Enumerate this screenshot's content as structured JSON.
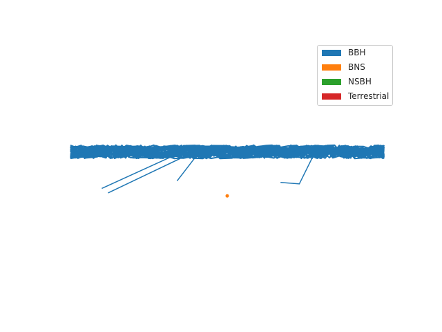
{
  "chart_data": {
    "type": "line",
    "title": "",
    "xlabel": "",
    "ylabel": "",
    "axes_visible": false,
    "grid": false,
    "legend_placement": "upper-right",
    "legend": [
      {
        "label": "BBH",
        "color": "#1f77b4"
      },
      {
        "label": "BNS",
        "color": "#ff7f0e"
      },
      {
        "label": "NSBH",
        "color": "#2ca02c"
      },
      {
        "label": "Terrestrial",
        "color": "#d62728"
      }
    ],
    "xlim": [
      0,
      1
    ],
    "ylim": [
      -1,
      1
    ],
    "series": [
      {
        "name": "BBH",
        "color": "#1f77b4",
        "style": "dense-line-band",
        "band_y_range": [
          0.05,
          0.14
        ],
        "x": [
          0.0,
          0.05,
          0.1,
          0.15,
          0.2,
          0.25,
          0.3,
          0.35,
          0.4,
          0.45,
          0.5,
          0.55,
          0.6,
          0.65,
          0.7,
          0.75,
          0.8,
          0.85,
          0.9,
          0.95,
          1.0
        ],
        "y": [
          0.1,
          0.08,
          0.12,
          0.09,
          0.11,
          0.07,
          0.13,
          0.1,
          0.12,
          0.11,
          0.1,
          0.13,
          0.09,
          0.12,
          0.11,
          0.08,
          0.12,
          0.1,
          0.09,
          0.11,
          0.1
        ],
        "outliers": [
          {
            "x": [
              0.1,
              0.33
            ],
            "y": [
              -0.15,
              0.07
            ]
          },
          {
            "x": [
              0.12,
              0.35
            ],
            "y": [
              -0.18,
              0.05
            ]
          },
          {
            "x": [
              0.34,
              0.41
            ],
            "y": [
              -0.1,
              0.09
            ]
          },
          {
            "x": [
              0.67,
              0.73,
              0.77
            ],
            "y": [
              -0.11,
              -0.12,
              0.05
            ]
          }
        ]
      },
      {
        "name": "BNS",
        "color": "#ff7f0e",
        "style": "points",
        "x": [
          0.5
        ],
        "y": [
          -0.2
        ]
      }
    ]
  }
}
